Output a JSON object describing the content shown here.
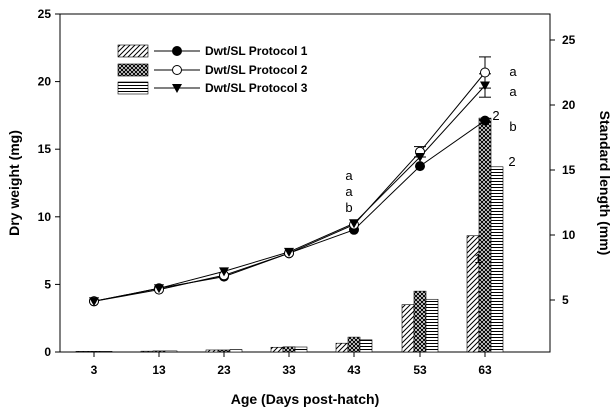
{
  "chart_data": {
    "type": "bar+line",
    "xlabel": "Age (Days post-hatch)",
    "ylabel": "Dry weight (mg)",
    "y2label": "Standard length (mm)",
    "categories": [
      "3",
      "13",
      "23",
      "33",
      "43",
      "53",
      "63"
    ],
    "ylim": [
      0,
      25
    ],
    "yticks": [
      0,
      5,
      10,
      15,
      20,
      25
    ],
    "y2lim": [
      1,
      27
    ],
    "y2ticks": [
      5,
      10,
      15,
      20,
      25
    ],
    "bar_series": [
      {
        "name": "Dwt Protocol 1",
        "pattern": "diagonal",
        "values": [
          0.05,
          0.06,
          0.15,
          0.35,
          0.65,
          3.5,
          8.6
        ]
      },
      {
        "name": "Dwt Protocol 2",
        "pattern": "crosshatch",
        "values": [
          0.05,
          0.08,
          0.15,
          0.38,
          1.1,
          4.5,
          17.3
        ]
      },
      {
        "name": "Dwt Protocol 3",
        "pattern": "horizontal",
        "values": [
          0.05,
          0.08,
          0.18,
          0.37,
          0.9,
          3.9,
          13.7
        ]
      }
    ],
    "line_series": [
      {
        "name": "SL Protocol 1",
        "marker": "filled-circle",
        "values": [
          4.9,
          5.9,
          6.8,
          8.6,
          10.4,
          15.3,
          18.8
        ],
        "errors": [
          0,
          0,
          0,
          0,
          0,
          0,
          0
        ]
      },
      {
        "name": "SL Protocol 2",
        "marker": "open-circle",
        "values": [
          4.9,
          5.8,
          6.9,
          8.6,
          10.8,
          16.4,
          22.5
        ],
        "errors": [
          0,
          0,
          0,
          0,
          0,
          0.4,
          1.2
        ]
      },
      {
        "name": "SL Protocol 3",
        "marker": "filled-triangle-down",
        "values": [
          4.9,
          5.9,
          7.2,
          8.7,
          10.9,
          16.0,
          21.5
        ],
        "errors": [
          0,
          0,
          0,
          0,
          0,
          0,
          0.9
        ]
      }
    ],
    "legend": {
      "placement": "top-left",
      "entries": [
        "Dwt/SL Protocol 1",
        "Dwt/SL Protocol 2",
        "Dwt/SL Protocol 3"
      ]
    },
    "annotations": {
      "day43": [
        "a",
        "a",
        "b"
      ],
      "day63_line": [
        "a",
        "a",
        "b"
      ],
      "day63_bar": [
        "1",
        "2",
        "2"
      ]
    }
  }
}
